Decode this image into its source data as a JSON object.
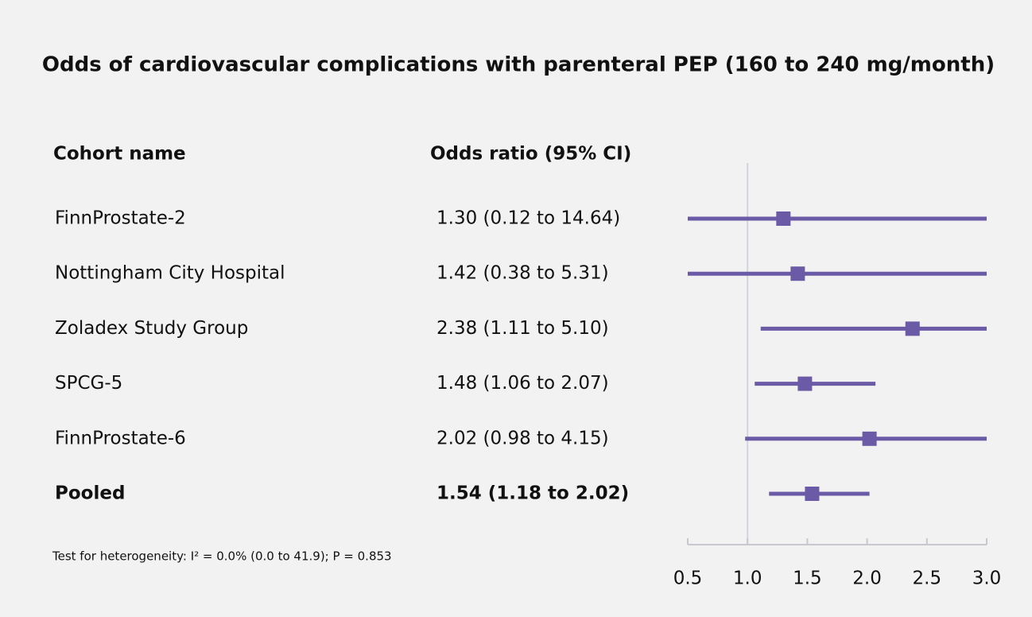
{
  "chart_data": {
    "type": "forest",
    "title": "Odds of cardiovascular complications with parenteral PEP (160 to 240 mg/month)",
    "column_headers": [
      "Cohort name",
      "Odds ratio (95% CI)"
    ],
    "categories": [
      "FinnProstate-2",
      "Nottingham City Hospital",
      "Zoladex Study Group",
      "SPCG-5",
      "FinnProstate-6",
      "Pooled"
    ],
    "values": [
      1.3,
      1.42,
      2.38,
      1.48,
      2.02,
      1.54
    ],
    "lower": [
      0.12,
      0.38,
      1.11,
      1.06,
      0.98,
      1.18
    ],
    "upper": [
      14.64,
      5.31,
      5.1,
      2.07,
      4.15,
      2.02
    ],
    "value_labels": [
      "1.30 (0.12 to 14.64)",
      "1.42 (0.38 to 5.31)",
      "2.38 (1.11 to 5.10)",
      "1.48 (1.06 to 2.07)",
      "2.02 (0.98 to 4.15)",
      "1.54 (1.18 to 2.02)"
    ],
    "color": "#6b5aa6",
    "reference_line": 1,
    "xlim": [
      0.5,
      3.0
    ],
    "xticks": [
      0.5,
      {
        "value": 1,
        "label": "1.0"
      },
      1.5,
      {
        "value": 2,
        "label": "2.0"
      },
      2.5,
      {
        "value": 3,
        "label": "3.0"
      }
    ],
    "footnote": "Test for heterogeneity: I² = 0.0% (0.0 to 41.9); P = 0.853"
  }
}
